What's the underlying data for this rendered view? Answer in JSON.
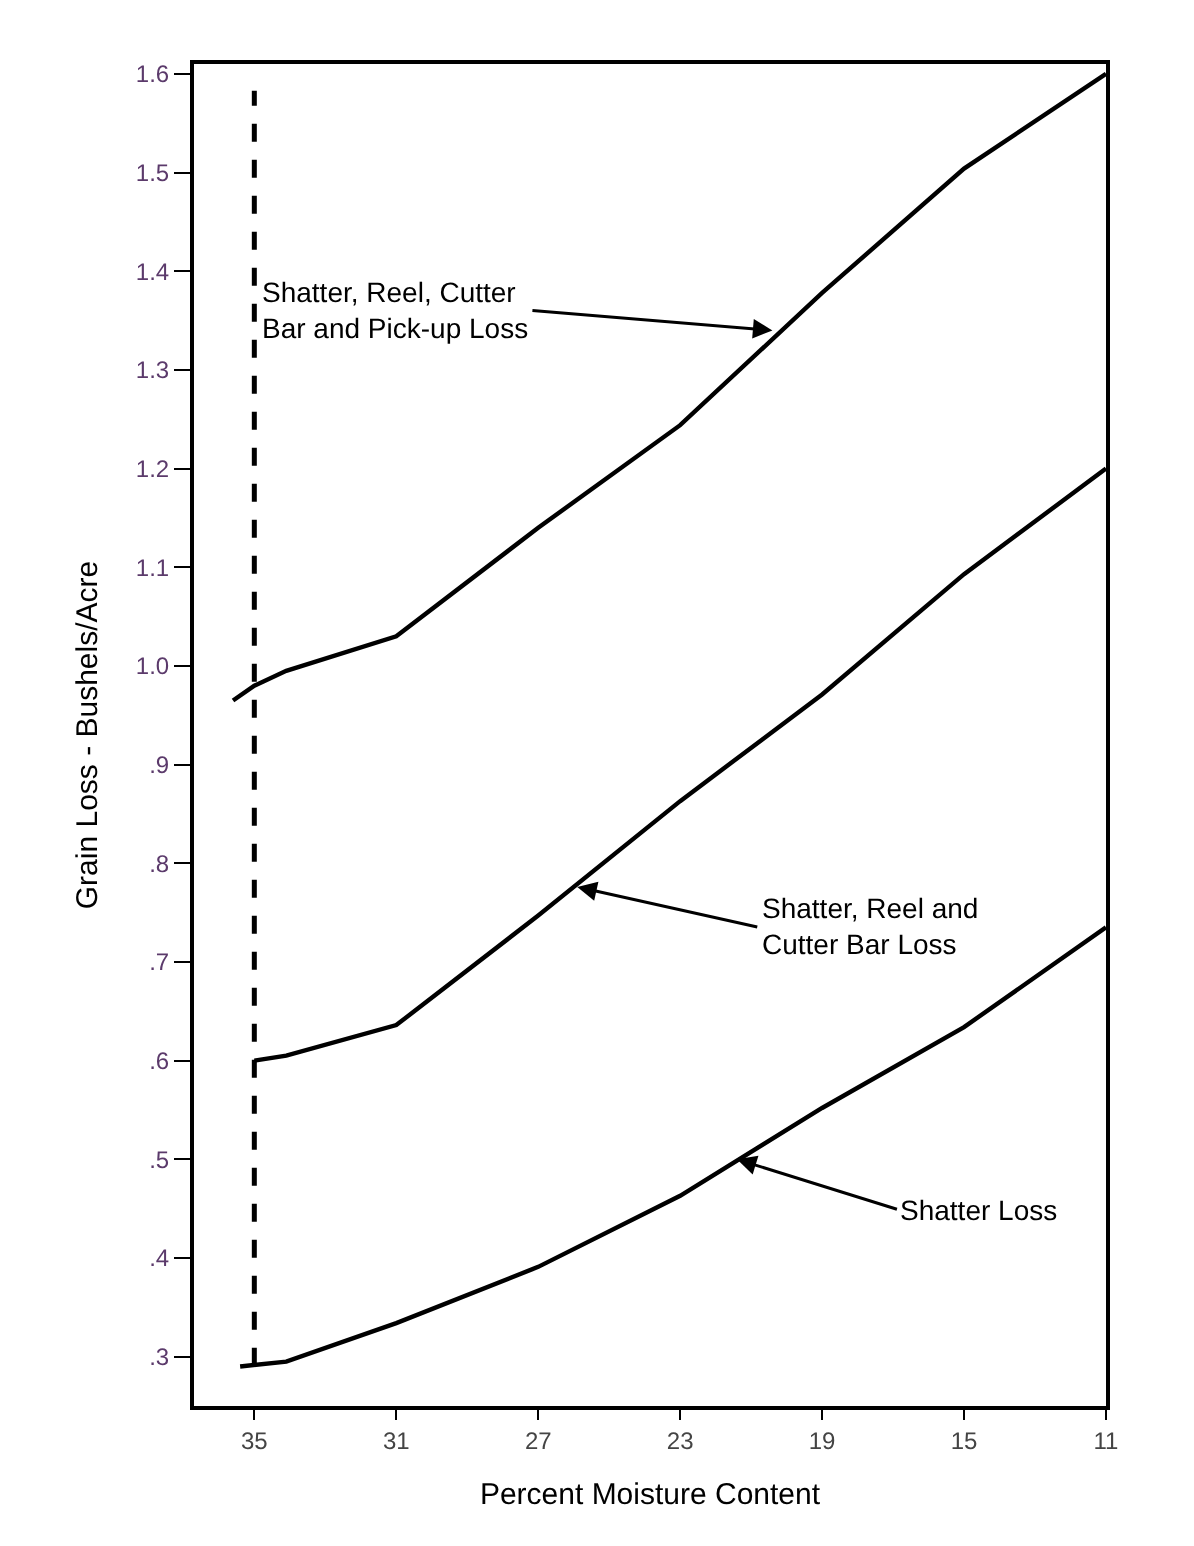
{
  "chart_data": {
    "type": "line",
    "xlabel": "Percent Moisture Content",
    "ylabel": "Grain Loss - Bushels/Acre",
    "series": [
      {
        "color": "#000000",
        "x": [
          35.6,
          35,
          34.1,
          31,
          27,
          23,
          19,
          15,
          11
        ],
        "values": [
          0.965,
          0.98,
          0.995,
          1.03,
          1.14,
          1.244,
          1.378,
          1.504,
          1.6
        ]
      },
      {
        "color": "#000000",
        "x": [
          35,
          34.1,
          31,
          27,
          23,
          19,
          15,
          11
        ],
        "values": [
          0.6,
          0.605,
          0.636,
          0.747,
          0.863,
          0.971,
          1.093,
          1.2
        ]
      },
      {
        "color": "#000000",
        "x": [
          35.4,
          34.1,
          31,
          27,
          23,
          19,
          15,
          11
        ],
        "values": [
          0.29,
          0.295,
          0.334,
          0.391,
          0.463,
          0.552,
          0.634,
          0.735
        ]
      }
    ],
    "xlim": [
      36.7,
      11
    ],
    "xticks": [
      35,
      31,
      27,
      23,
      19,
      15,
      11
    ],
    "ylim": [
      0.25,
      1.61
    ],
    "yticks": [
      {
        "value": 0.3,
        "label": ".3"
      },
      {
        "value": 0.4,
        "label": ".4"
      },
      {
        "value": 0.5,
        "label": ".5"
      },
      {
        "value": 0.6,
        "label": ".6"
      },
      {
        "value": 0.7,
        "label": ".7"
      },
      {
        "value": 0.8,
        "label": ".8"
      },
      {
        "value": 0.9,
        "label": ".9"
      },
      {
        "value": 1.0,
        "label": "1.0"
      },
      1.1,
      1.2,
      1.3,
      1.4,
      1.5,
      1.6
    ],
    "ref_lines": [
      {
        "axis": "x",
        "value": 35,
        "line_style": "dashed",
        "color": "#000000"
      }
    ],
    "annotations": [
      {
        "text": "Shatter, Reel, Cutter\nBar and Pick-up Loss",
        "x": 20.4,
        "y": 1.34
      },
      {
        "text": "Shatter, Reel and\nCutter Bar Loss",
        "x": 25.9,
        "y": 0.776
      },
      {
        "text": "Shatter Loss",
        "x": 21.4,
        "y": 0.5
      }
    ],
    "marker": "none",
    "line_style": "solid"
  }
}
